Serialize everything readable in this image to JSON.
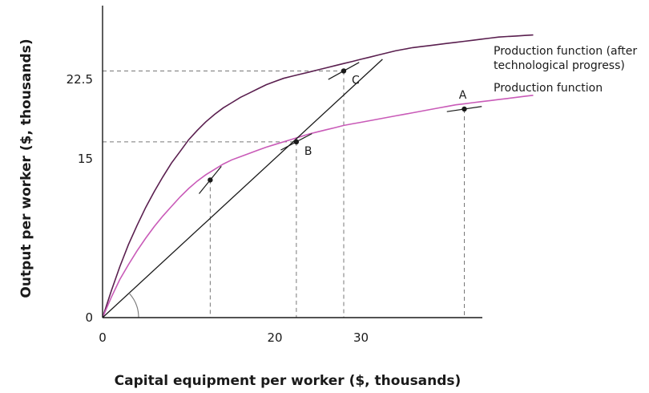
{
  "chart_data": {
    "type": "line",
    "xlabel": "Capital equipment per worker ($, thousands)",
    "ylabel": "Output per worker ($, thousands)",
    "xlim": [
      0,
      50
    ],
    "ylim": [
      0,
      35
    ],
    "x_ticks": [
      {
        "value": 0,
        "label": "0"
      },
      {
        "value": 20,
        "label": "20"
      },
      {
        "value": 30,
        "label": "30"
      }
    ],
    "y_ticks": [
      {
        "value": 0,
        "label": "0"
      },
      {
        "value": 15,
        "label": "15"
      },
      {
        "value": 22.5,
        "label": "22.5"
      }
    ],
    "series": [
      {
        "name": "Production function (after technological progress)",
        "color": "#5a1f4f",
        "label_lines": [
          "Production function (after",
          "technological progress)"
        ],
        "x": [
          0,
          1,
          2,
          3,
          4,
          5,
          6,
          7,
          8,
          9,
          10,
          11,
          12,
          13,
          14,
          15,
          16,
          17,
          18,
          19,
          20,
          21,
          22,
          23,
          24,
          25,
          26,
          27,
          28,
          29,
          30,
          31,
          32,
          33,
          34,
          35,
          36,
          37,
          38,
          39,
          40,
          41,
          42,
          43,
          44,
          45,
          46,
          47,
          48,
          49,
          50
        ],
        "y": [
          0,
          2.5,
          4.8,
          6.9,
          8.7,
          10.4,
          11.9,
          13.3,
          14.6,
          15.7,
          16.8,
          17.7,
          18.5,
          19.2,
          19.8,
          20.3,
          20.8,
          21.2,
          21.6,
          22.0,
          22.3,
          22.6,
          22.8,
          23.0,
          23.2,
          23.4,
          23.6,
          23.8,
          24.0,
          24.2,
          24.4,
          24.6,
          24.8,
          25.0,
          25.2,
          25.35,
          25.5,
          25.6,
          25.7,
          25.8,
          25.9,
          26.0,
          26.1,
          26.2,
          26.3,
          26.4,
          26.5,
          26.55,
          26.6,
          26.65,
          26.7
        ]
      },
      {
        "name": "Production function",
        "color": "#c95bb8",
        "label_lines": [
          "Production function"
        ],
        "x": [
          0,
          1,
          2,
          3,
          4,
          5,
          6,
          7,
          8,
          9,
          10,
          11,
          12,
          13,
          14,
          15,
          16,
          17,
          18,
          19,
          20,
          21,
          22,
          23,
          24,
          25,
          26,
          27,
          28,
          29,
          30,
          31,
          32,
          33,
          34,
          35,
          36,
          37,
          38,
          39,
          40,
          41,
          42,
          43,
          44,
          45,
          46,
          47,
          48,
          49,
          50
        ],
        "y": [
          0,
          1.9,
          3.6,
          5.0,
          6.3,
          7.5,
          8.6,
          9.6,
          10.5,
          11.4,
          12.2,
          12.9,
          13.5,
          14.0,
          14.5,
          14.9,
          15.2,
          15.5,
          15.8,
          16.1,
          16.35,
          16.6,
          16.85,
          17.1,
          17.35,
          17.55,
          17.75,
          17.95,
          18.15,
          18.3,
          18.45,
          18.6,
          18.75,
          18.9,
          19.05,
          19.2,
          19.35,
          19.5,
          19.65,
          19.8,
          19.95,
          20.1,
          20.2,
          20.3,
          20.4,
          20.5,
          20.6,
          20.7,
          20.8,
          20.9,
          21.0
        ]
      },
      {
        "name": "",
        "color": "#1a1a1a",
        "label_lines": [],
        "x": [
          0,
          32.5
        ],
        "y": [
          0,
          24.4
        ]
      }
    ],
    "points": [
      {
        "label": "",
        "x": 12.5,
        "y": 13.0,
        "slope": 1.0,
        "series": 1,
        "guide_x": true,
        "guide_y": false
      },
      {
        "label": "B",
        "x": 22.5,
        "y": 16.6,
        "slope": 0.43,
        "series": 1,
        "guide_x": true,
        "guide_y": true
      },
      {
        "label": "C",
        "x": 28.0,
        "y": 23.3,
        "slope": 0.45,
        "series": 0,
        "guide_x": true,
        "guide_y": true
      },
      {
        "label": "A",
        "x": 42.0,
        "y": 19.7,
        "slope": 0.12,
        "series": 1,
        "guide_x": true,
        "guide_y": false
      }
    ],
    "angle_marker": true,
    "grid": false
  }
}
